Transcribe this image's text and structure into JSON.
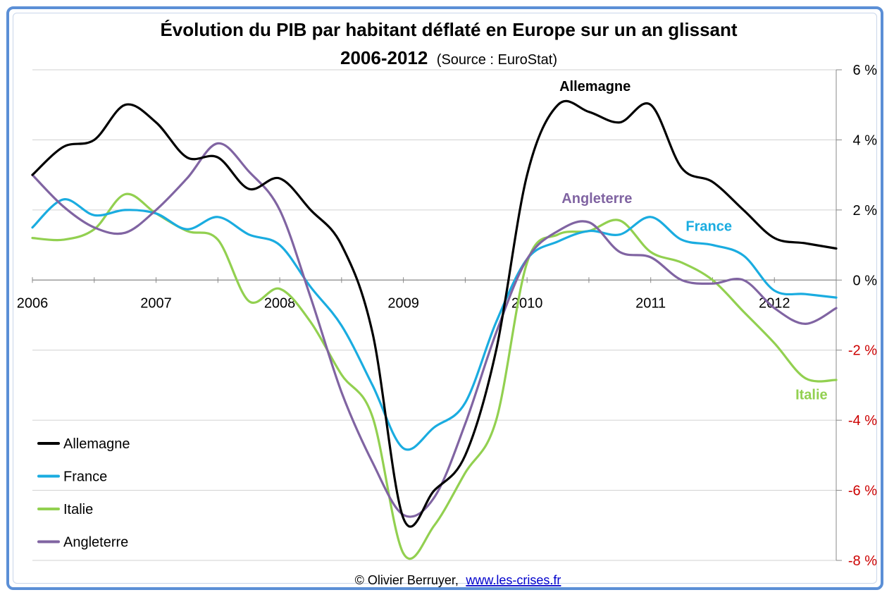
{
  "title": "Évolution du PIB par habitant déflaté en Europe sur un an glissant",
  "subtitle_years": "2006-2012",
  "subtitle_source": "(Source : EuroStat)",
  "credit": {
    "text": "© Olivier Berruyer,",
    "link_label": "www.les-crises.fr"
  },
  "chart_data": {
    "type": "line",
    "title": "Évolution du PIB par habitant déflaté en Europe sur un an glissant",
    "x_range": [
      2006.0,
      2012.5
    ],
    "x_ticks": [
      {
        "value": 2006,
        "label": "2006"
      },
      {
        "value": 2007,
        "label": "2007"
      },
      {
        "value": 2008,
        "label": "2008"
      },
      {
        "value": 2009,
        "label": "2009"
      },
      {
        "value": 2010,
        "label": "2010"
      },
      {
        "value": 2011,
        "label": "2011"
      },
      {
        "value": 2012,
        "label": "2012"
      }
    ],
    "ylim": [
      -8,
      6
    ],
    "y_ticks": [
      {
        "value": 6,
        "label": "6 %"
      },
      {
        "value": 4,
        "label": "4 %"
      },
      {
        "value": 2,
        "label": "2 %"
      },
      {
        "value": 0,
        "label": "0 %"
      },
      {
        "value": -2,
        "label": "-2 %"
      },
      {
        "value": -4,
        "label": "-4 %"
      },
      {
        "value": -6,
        "label": "-6 %"
      },
      {
        "value": -8,
        "label": "-8 %"
      }
    ],
    "grid": true,
    "y_axis_position": "right",
    "legend_position": "bottom-left",
    "series": [
      {
        "name": "Allemagne",
        "color": "#000000",
        "label": "Allemagne",
        "x": [
          2006.0,
          2006.25,
          2006.5,
          2006.75,
          2007.0,
          2007.25,
          2007.5,
          2007.75,
          2008.0,
          2008.25,
          2008.5,
          2008.75,
          2009.0,
          2009.25,
          2009.5,
          2009.75,
          2010.0,
          2010.25,
          2010.5,
          2010.75,
          2011.0,
          2011.25,
          2011.5,
          2011.75,
          2012.0,
          2012.25,
          2012.5
        ],
        "values": [
          3.0,
          3.8,
          4.0,
          5.0,
          4.5,
          3.5,
          3.5,
          2.6,
          2.9,
          2.0,
          1.0,
          -1.5,
          -6.8,
          -6.0,
          -5.0,
          -2.0,
          3.0,
          5.0,
          4.8,
          4.5,
          5.0,
          3.2,
          2.8,
          2.0,
          1.2,
          1.05,
          0.9
        ]
      },
      {
        "name": "France",
        "color": "#1aace0",
        "label": "France",
        "x": [
          2006.0,
          2006.25,
          2006.5,
          2006.75,
          2007.0,
          2007.25,
          2007.5,
          2007.75,
          2008.0,
          2008.25,
          2008.5,
          2008.75,
          2009.0,
          2009.25,
          2009.5,
          2009.75,
          2010.0,
          2010.25,
          2010.5,
          2010.75,
          2011.0,
          2011.25,
          2011.5,
          2011.75,
          2012.0,
          2012.25,
          2012.5
        ],
        "values": [
          1.5,
          2.3,
          1.85,
          2.0,
          1.9,
          1.45,
          1.8,
          1.3,
          1.0,
          -0.2,
          -1.3,
          -3.0,
          -4.8,
          -4.2,
          -3.5,
          -1.2,
          0.6,
          1.1,
          1.4,
          1.3,
          1.8,
          1.15,
          1.0,
          0.7,
          -0.3,
          -0.4,
          -0.5
        ]
      },
      {
        "name": "Italie",
        "color": "#92d050",
        "label": "Italie",
        "x": [
          2006.0,
          2006.25,
          2006.5,
          2006.75,
          2007.0,
          2007.25,
          2007.5,
          2007.75,
          2008.0,
          2008.25,
          2008.5,
          2008.75,
          2009.0,
          2009.25,
          2009.5,
          2009.75,
          2010.0,
          2010.25,
          2010.5,
          2010.75,
          2011.0,
          2011.25,
          2011.5,
          2011.75,
          2012.0,
          2012.25,
          2012.5
        ],
        "values": [
          1.2,
          1.15,
          1.45,
          2.45,
          1.9,
          1.4,
          1.15,
          -0.6,
          -0.25,
          -1.2,
          -2.7,
          -3.9,
          -7.8,
          -7.0,
          -5.5,
          -4.0,
          0.5,
          1.3,
          1.4,
          1.7,
          0.8,
          0.5,
          0.0,
          -0.9,
          -1.8,
          -2.8,
          -2.85
        ]
      },
      {
        "name": "Angleterre",
        "color": "#8064a2",
        "label": "Angleterre",
        "x": [
          2006.0,
          2006.25,
          2006.5,
          2006.75,
          2007.0,
          2007.25,
          2007.5,
          2007.75,
          2008.0,
          2008.25,
          2008.5,
          2008.75,
          2009.0,
          2009.25,
          2009.5,
          2009.75,
          2010.0,
          2010.25,
          2010.5,
          2010.75,
          2011.0,
          2011.25,
          2011.5,
          2011.75,
          2012.0,
          2012.25,
          2012.5
        ],
        "values": [
          3.0,
          2.1,
          1.5,
          1.35,
          2.0,
          2.9,
          3.9,
          3.1,
          2.0,
          -0.5,
          -3.2,
          -5.2,
          -6.7,
          -6.2,
          -4.1,
          -1.5,
          0.6,
          1.4,
          1.65,
          0.8,
          0.65,
          0.0,
          -0.1,
          0.0,
          -0.8,
          -1.25,
          -0.8
        ]
      }
    ],
    "annotations": [
      {
        "text": "Allemagne",
        "series": "Allemagne"
      },
      {
        "text": "France",
        "series": "France"
      },
      {
        "text": "Italie",
        "series": "Italie"
      },
      {
        "text": "Angleterre",
        "series": "Angleterre"
      }
    ]
  }
}
